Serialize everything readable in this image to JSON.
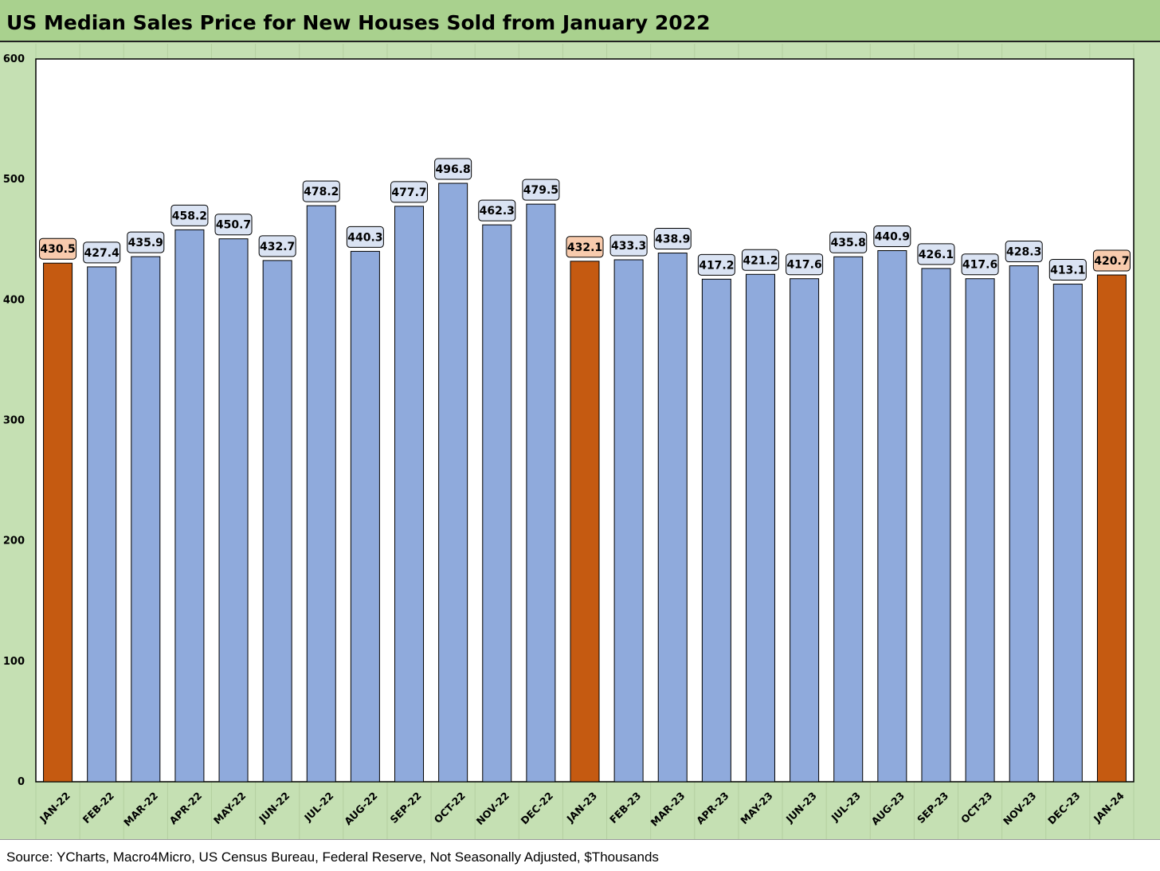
{
  "title": "US Median Sales Price for New Houses Sold from January 2022",
  "source": "Source: YCharts, Macro4Micro, US Census Bureau, Federal Reserve, Not Seasonally Adjusted, $Thousands",
  "colors": {
    "background": "#c5e0b3",
    "title_bar": "#a9d18e",
    "plot_area": "#ffffff",
    "bar_default": "#8faadc",
    "bar_highlight": "#c55a11",
    "label_default_fill": "#dae3f3",
    "label_highlight_fill": "#f8cbad"
  },
  "chart_data": {
    "type": "bar",
    "categories": [
      "JAN-22",
      "FEB-22",
      "MAR-22",
      "APR-22",
      "MAY-22",
      "JUN-22",
      "JUL-22",
      "AUG-22",
      "SEP-22",
      "OCT-22",
      "NOV-22",
      "DEC-22",
      "JAN-23",
      "FEB-23",
      "MAR-23",
      "APR-23",
      "MAY-23",
      "JUN-23",
      "JUL-23",
      "AUG-23",
      "SEP-23",
      "OCT-23",
      "NOV-23",
      "DEC-23",
      "JAN-24"
    ],
    "values": [
      430.5,
      427.4,
      435.9,
      458.2,
      450.7,
      432.7,
      478.2,
      440.3,
      477.7,
      496.8,
      462.3,
      479.5,
      432.1,
      433.3,
      438.9,
      417.2,
      421.2,
      417.6,
      435.8,
      440.9,
      426.1,
      417.6,
      428.3,
      413.1,
      420.7
    ],
    "data_labels": [
      "430.5",
      "427.4",
      "435.9",
      "458.2",
      "450.7",
      "432.7",
      "478.2",
      "440.3",
      "477.7",
      "496.8",
      "462.3",
      "479.5",
      "432.1",
      "433.3",
      "438.9",
      "417.2",
      "421.2",
      "417.6",
      "435.8",
      "440.9",
      "426.1",
      "417.6",
      "428.3",
      "413.1",
      "420.7"
    ],
    "highlighted": [
      "JAN-22",
      "JAN-23",
      "JAN-24"
    ],
    "ylim": [
      0,
      600
    ],
    "yticks": [
      0,
      100,
      200,
      300,
      400,
      500,
      600
    ],
    "ytick_labels": [
      "0",
      "100",
      "200",
      "300",
      "400",
      "500",
      "600"
    ],
    "xlabel": "",
    "ylabel": "",
    "grid": true,
    "legend": false
  }
}
